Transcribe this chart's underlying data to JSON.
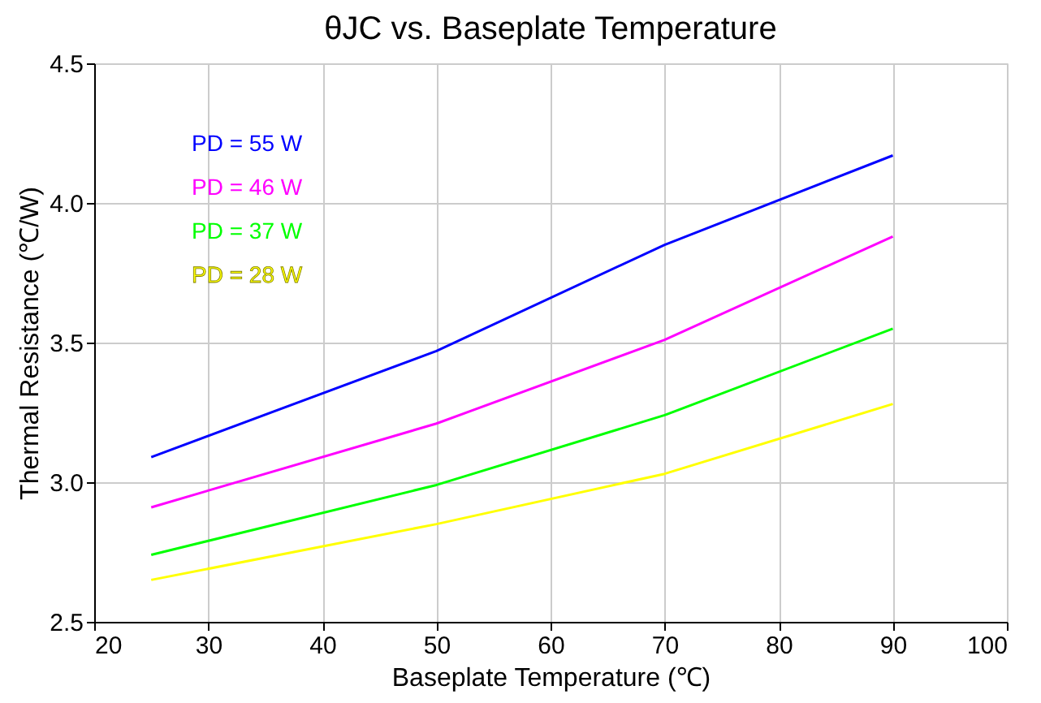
{
  "chart_data": {
    "type": "line",
    "title": "θJC vs. Baseplate Temperature",
    "xlabel": "Baseplate Temperature (℃)",
    "ylabel": "Thermal Resistance (℃/W)",
    "x": [
      25,
      50,
      70,
      90
    ],
    "series": [
      {
        "name": "PD = 55 W",
        "color": "#0000ff",
        "values": [
          3.09,
          3.47,
          3.85,
          4.17
        ]
      },
      {
        "name": "PD = 46 W",
        "color": "#ff00ff",
        "values": [
          2.91,
          3.21,
          3.51,
          3.88
        ]
      },
      {
        "name": "PD = 37 W",
        "color": "#00ff00",
        "values": [
          2.74,
          2.99,
          3.24,
          3.55
        ]
      },
      {
        "name": "PD = 28 W",
        "color": "#ffff00",
        "values": [
          2.65,
          2.85,
          3.03,
          3.28
        ]
      }
    ],
    "xlim": [
      20,
      100
    ],
    "xticks": [
      20,
      30,
      40,
      50,
      60,
      70,
      80,
      90,
      100
    ],
    "ylim": [
      2.5,
      4.5
    ],
    "yticks": [
      2.5,
      {
        "value": 3,
        "label": "3.0"
      },
      3.5,
      {
        "value": 4,
        "label": "4.0"
      },
      4.5
    ],
    "grid": true,
    "legend": "top left",
    "marker": "none",
    "line_style": "solid"
  }
}
